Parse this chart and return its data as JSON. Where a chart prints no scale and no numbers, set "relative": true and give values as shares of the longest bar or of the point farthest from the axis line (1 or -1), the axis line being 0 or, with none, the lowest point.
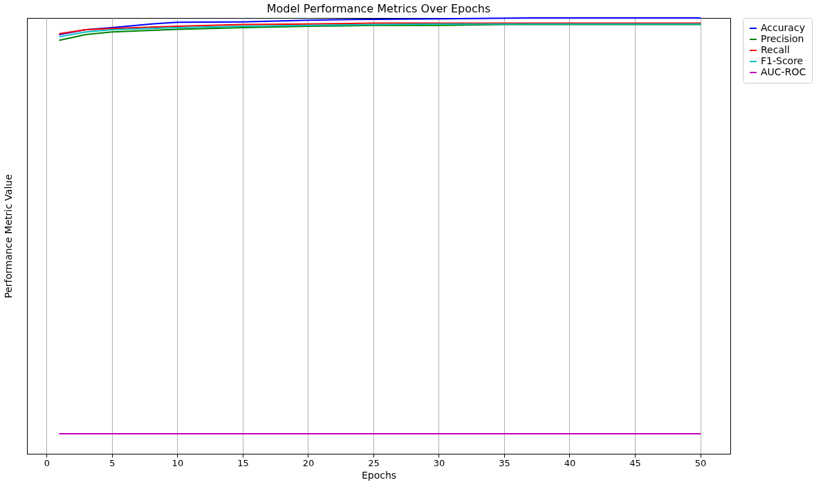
{
  "chart_data": {
    "type": "line",
    "title": "Model Performance Metrics Over Epochs",
    "xlabel": "Epochs",
    "ylabel": "Performance Metric Value",
    "relative": true,
    "xlim": [
      -1.5,
      52.3
    ],
    "xticks": [
      0,
      5,
      10,
      15,
      20,
      25,
      30,
      35,
      40,
      45,
      50
    ],
    "grid": "x",
    "legend": "right",
    "marker": "none",
    "line_style": "solid",
    "series": [
      {
        "name": "Accuracy",
        "color": "#0000ff",
        "x": [
          1,
          3,
          5,
          8,
          10,
          15,
          20,
          25,
          30,
          37,
          50
        ],
        "values": [
          0.962,
          0.973,
          0.978,
          0.986,
          0.99,
          0.991,
          0.995,
          0.997,
          0.998,
          1,
          1
        ]
      },
      {
        "name": "Precision",
        "color": "#008000",
        "x": [
          1,
          3,
          5,
          10,
          15,
          20,
          25,
          30,
          35,
          50
        ],
        "values": [
          0.949,
          0.962,
          0.968,
          0.974,
          0.978,
          0.981,
          0.983,
          0.983,
          0.985,
          0.985
        ]
      },
      {
        "name": "Recall",
        "color": "#ff0000",
        "x": [
          1,
          3,
          5,
          10,
          15,
          20,
          25,
          30,
          50
        ],
        "values": [
          0.964,
          0.973,
          0.976,
          0.981,
          0.985,
          0.986,
          0.988,
          0.988,
          0.988
        ]
      },
      {
        "name": "F1-Score",
        "color": "#00bfbf",
        "x": [
          1,
          3,
          5,
          10,
          15,
          20,
          25,
          30,
          50
        ],
        "values": [
          0.957,
          0.968,
          0.973,
          0.978,
          0.981,
          0.983,
          0.985,
          0.986,
          0.986
        ]
      },
      {
        "name": "AUC-ROC",
        "color": "#bf00bf",
        "x": [
          1,
          50
        ],
        "values": [
          0.046,
          0.046
        ]
      }
    ]
  }
}
